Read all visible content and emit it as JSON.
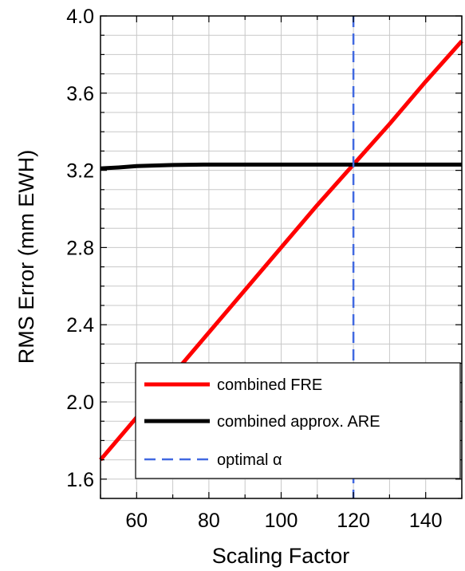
{
  "chart_data": {
    "type": "line",
    "xlabel": "Scaling Factor",
    "ylabel": "RMS Error (mm EWH)",
    "xlim": [
      50,
      150
    ],
    "ylim": [
      1.5,
      4.0
    ],
    "grid": true,
    "legend_position": "bottom-right",
    "xticks": [
      {
        "value": 60,
        "label": "60"
      },
      {
        "value": 80,
        "label": "80"
      },
      {
        "value": 100,
        "label": "100"
      },
      {
        "value": 120,
        "label": "120"
      },
      {
        "value": 140,
        "label": "140"
      }
    ],
    "yticks": [
      {
        "value": 1.6,
        "label": "1.6"
      },
      {
        "value": 2.0,
        "label": "2.0"
      },
      {
        "value": 2.4,
        "label": "2.4"
      },
      {
        "value": 2.8,
        "label": "2.8"
      },
      {
        "value": 3.2,
        "label": "3.2"
      },
      {
        "value": 3.6,
        "label": "3.6"
      },
      {
        "value": 4.0,
        "label": "4.0"
      }
    ],
    "series": [
      {
        "name": "combined FRE",
        "color": "#ff0000",
        "style": "solid",
        "x": [
          50,
          60,
          70,
          80,
          90,
          100,
          110,
          120,
          130,
          140,
          150
        ],
        "y": [
          1.7,
          1.92,
          2.14,
          2.36,
          2.58,
          2.8,
          3.02,
          3.23,
          3.44,
          3.66,
          3.87
        ]
      },
      {
        "name": "combined approx. ARE",
        "color": "#000000",
        "style": "solid",
        "x": [
          50,
          55,
          60,
          70,
          80,
          90,
          100,
          110,
          120,
          130,
          140,
          150
        ],
        "y": [
          3.21,
          3.215,
          3.222,
          3.228,
          3.23,
          3.23,
          3.23,
          3.23,
          3.23,
          3.23,
          3.23,
          3.23
        ]
      },
      {
        "name": "optimal α",
        "color": "#4169e1",
        "style": "dashed",
        "vertical_x": 120
      }
    ]
  }
}
